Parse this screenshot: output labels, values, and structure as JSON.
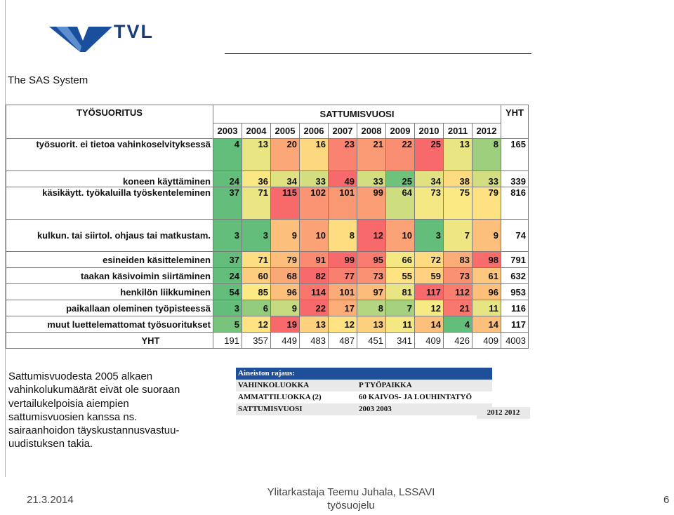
{
  "logo": {
    "text": "TVL"
  },
  "system_title": "The SAS System",
  "table": {
    "header_group_left": "TYÖSUORITUS",
    "header_group_mid": "SATTUMISVUOSI",
    "header_total": "YHT",
    "years": [
      "2003",
      "2004",
      "2005",
      "2006",
      "2007",
      "2008",
      "2009",
      "2010",
      "2011",
      "2012"
    ],
    "rows": [
      {
        "label": "työsuorit. ei tietoa vahinkoselvityksessä",
        "values": [
          4,
          13,
          20,
          16,
          23,
          21,
          22,
          25,
          13,
          8
        ],
        "total": 165,
        "height": "tall1"
      },
      {
        "label": "koneen käyttäminen",
        "values": [
          24,
          36,
          34,
          33,
          49,
          33,
          25,
          34,
          38,
          33
        ],
        "total": 339,
        "height": "normal"
      },
      {
        "label": "käsikäytt. työkaluilla työskenteleminen",
        "values": [
          37,
          71,
          115,
          102,
          101,
          99,
          64,
          73,
          75,
          79
        ],
        "total": 816,
        "height": "tall1"
      },
      {
        "label": "kulkun. tai siirtol. ohjaus tai matkustam.",
        "values": [
          3,
          3,
          9,
          10,
          8,
          12,
          10,
          3,
          7,
          9
        ],
        "total": 74,
        "height": "tall2"
      },
      {
        "label": "esineiden käsitteleminen",
        "values": [
          37,
          71,
          79,
          91,
          99,
          95,
          66,
          72,
          83,
          98
        ],
        "total": 791,
        "height": "normal"
      },
      {
        "label": "taakan käsivoimin siirtäminen",
        "values": [
          24,
          60,
          68,
          82,
          77,
          73,
          55,
          59,
          73,
          61
        ],
        "total": 632,
        "height": "normal"
      },
      {
        "label": "henkilön liikkuminen",
        "values": [
          54,
          85,
          96,
          114,
          101,
          97,
          81,
          117,
          112,
          96
        ],
        "total": 953,
        "height": "normal"
      },
      {
        "label": "paikallaan oleminen työpisteessä",
        "values": [
          3,
          6,
          9,
          22,
          17,
          8,
          7,
          12,
          21,
          11
        ],
        "total": 116,
        "height": "normal"
      },
      {
        "label": "muut luettelemattomat työsuoritukset",
        "values": [
          5,
          12,
          19,
          13,
          12,
          13,
          11,
          14,
          4,
          14
        ],
        "total": 117,
        "height": "normal"
      }
    ],
    "total_row": {
      "label": "YHT",
      "values": [
        191,
        357,
        449,
        483,
        487,
        451,
        341,
        409,
        426,
        409
      ],
      "total": 4003
    }
  },
  "note_lines": [
    "Sattumisvuodesta 2005 alkaen",
    "vahinkolukumäärät eivät ole suoraan",
    "vertailukelpoisia aiempien",
    "sattumisvuosien kanssa ns.",
    "sairaanhoidon täyskustannusvastuu-",
    "uudistuksen takia."
  ],
  "rajaus": {
    "title": "Aineiston rajaus:",
    "rows": [
      {
        "key": "VAHINKOLUOKKA",
        "value": "P TYÖPAIKKA"
      },
      {
        "key": "AMMATTILUOKKA (2)",
        "value": "60 KAIVOS- JA LOUHINTATYÖ"
      },
      {
        "key": "SATTUMISVUOSI",
        "value": "2003 2003"
      }
    ],
    "extra": "2012 2012"
  },
  "footer": {
    "date": "21.3.2014",
    "author_line1": "Ylitarkastaja Teemu Juhala, LSSAVI",
    "author_line2": "työsuojelu",
    "page": "6"
  },
  "colors": {
    "green": "#63be7b",
    "yellow": "#ffeb84",
    "red": "#f8696b",
    "logo_blue": "#1a3d7a"
  }
}
